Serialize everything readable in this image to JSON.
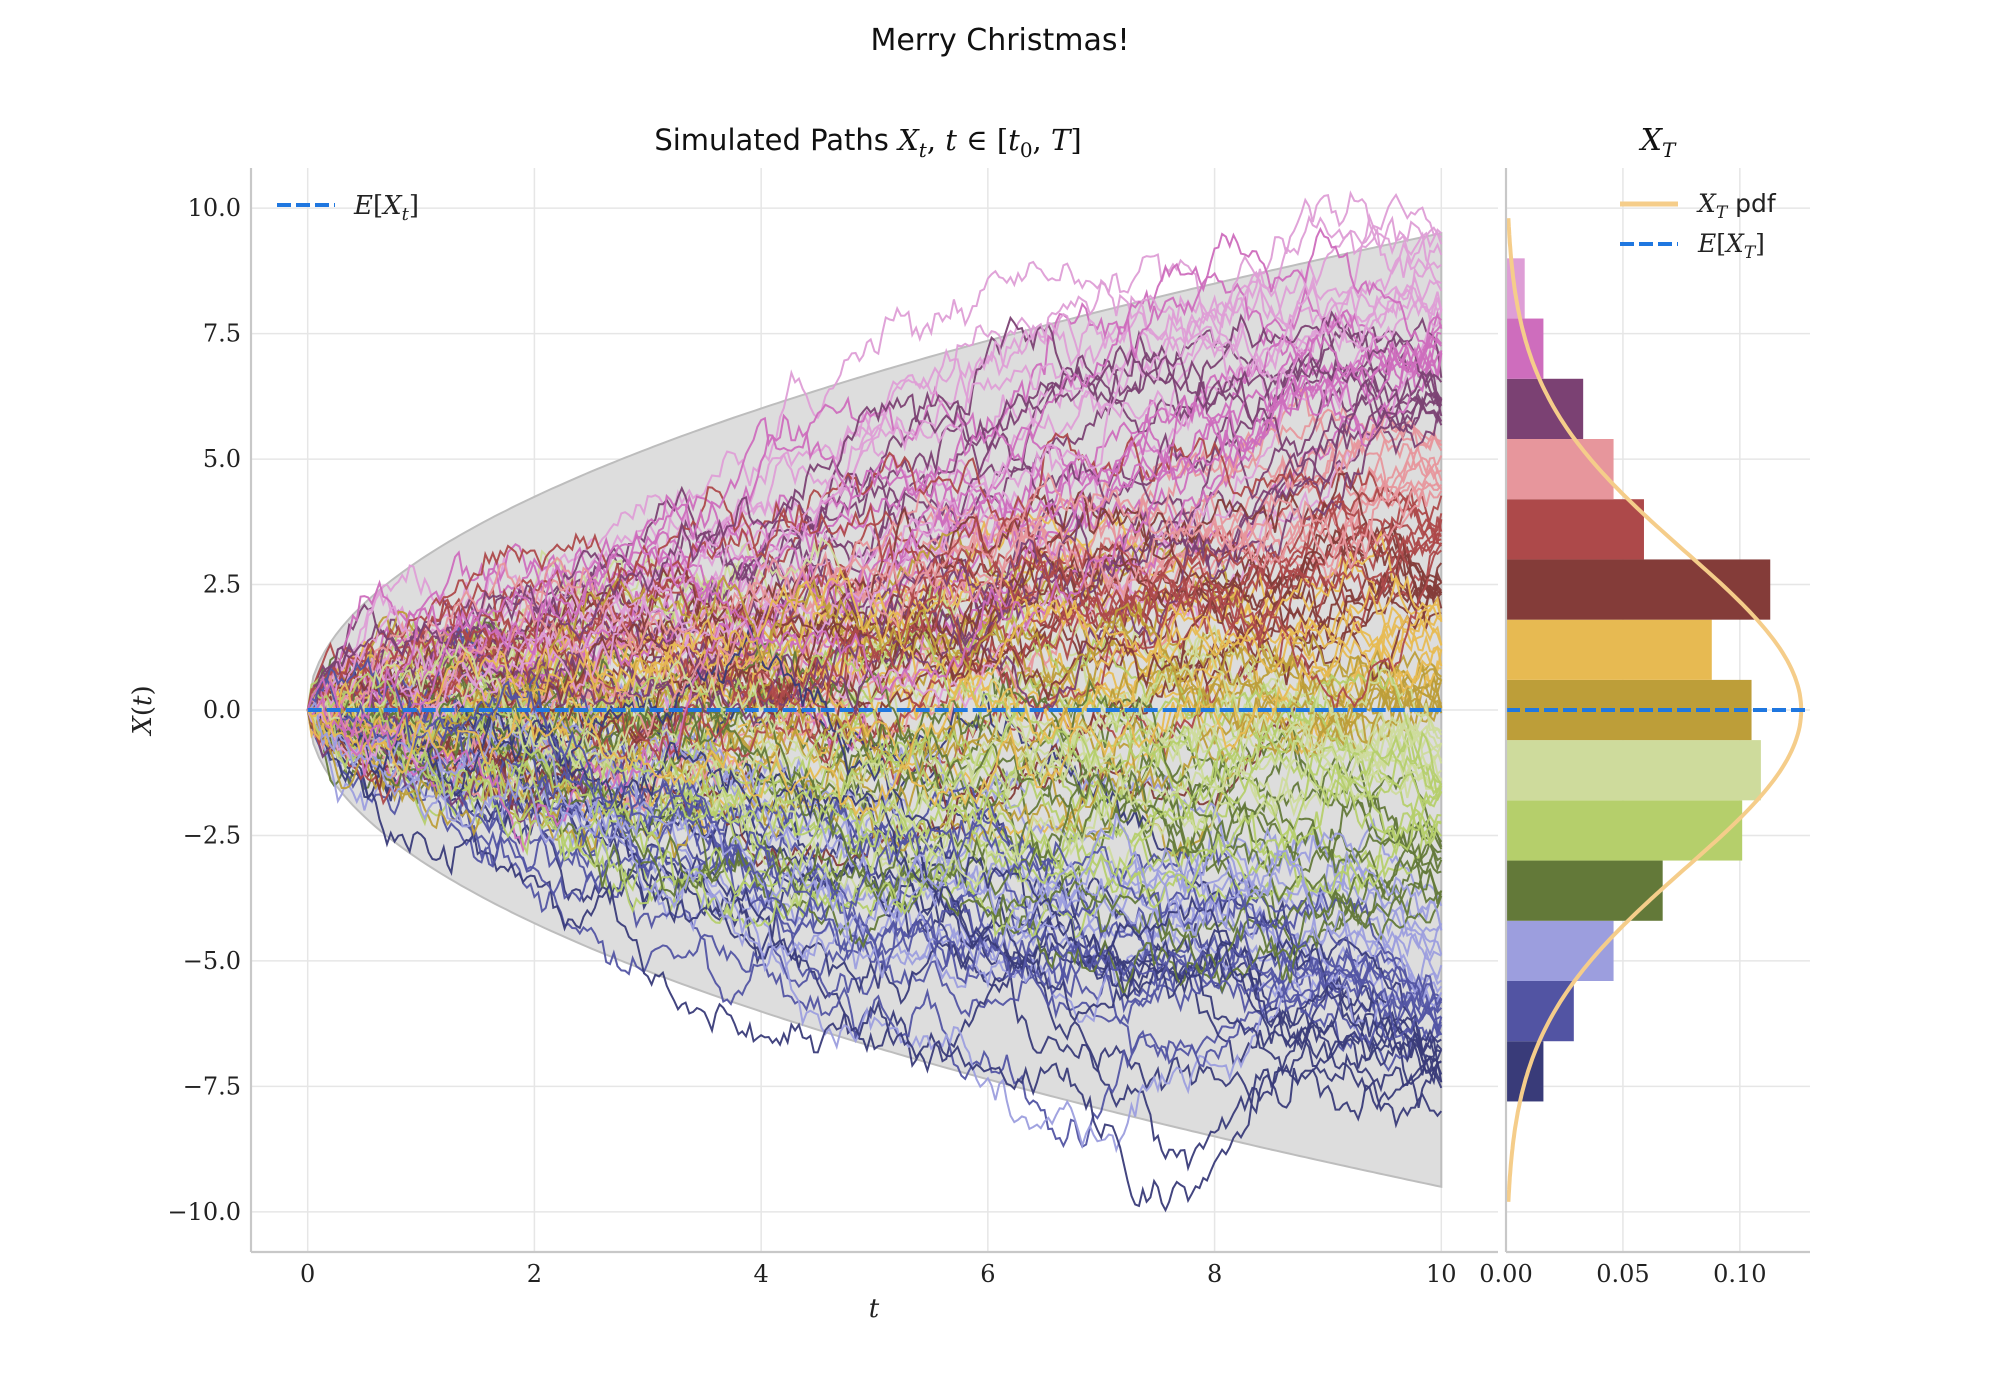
{
  "figure": {
    "suptitle": "Merry Christmas!"
  },
  "chart_data": [
    {
      "type": "line",
      "title": "Simulated Paths X_t, t ∈ [t_0, T]",
      "xlabel": "t",
      "ylabel": "X(t)",
      "xlim": [
        -0.5,
        10.5
      ],
      "ylim": [
        -10.8,
        10.8
      ],
      "xticks": [
        0,
        2,
        4,
        6,
        8,
        10
      ],
      "xtick_labels": [
        "0",
        "2",
        "4",
        "6",
        "8",
        "10"
      ],
      "yticks": [
        -10,
        -7.5,
        -5,
        -2.5,
        0,
        2.5,
        5,
        7.5,
        10
      ],
      "ytick_labels": [
        "−10.0",
        "−7.5",
        "−5.0",
        "−2.5",
        "0.0",
        "2.5",
        "5.0",
        "7.5",
        "10.0"
      ],
      "grid": true,
      "legend": {
        "placement": "top-left",
        "entries": [
          {
            "label": "E[X_t]",
            "style": "dashed",
            "color": "#1f77e0"
          }
        ]
      },
      "band": {
        "t_start": 0,
        "t_end": 10,
        "upper_at_T": 9.5,
        "lower_at_T": -9.5,
        "color": "#dddddd"
      },
      "mean_line": {
        "value": 0,
        "color": "#1f77e0"
      },
      "num_paths_estimate": 150,
      "terminal_value_range": [
        -8,
        9.6
      ],
      "color_groups": [
        {
          "color": "#393b79",
          "terminal_range": [
            -8,
            -6.5
          ]
        },
        {
          "color": "#5254a3",
          "terminal_range": [
            -6.5,
            -5.7
          ]
        },
        {
          "color": "#9c9ede",
          "terminal_range": [
            -5.7,
            -3.8
          ]
        },
        {
          "color": "#637939",
          "terminal_range": [
            -3.8,
            -2.6
          ]
        },
        {
          "color": "#b5cf6b",
          "terminal_range": [
            -2.6,
            -1.4
          ]
        },
        {
          "color": "#cedb9c",
          "terminal_range": [
            -1.4,
            -0.4
          ]
        },
        {
          "color": "#bd9e39",
          "terminal_range": [
            -0.4,
            0.8
          ]
        },
        {
          "color": "#e7ba52",
          "terminal_range": [
            0.8,
            1.9
          ]
        },
        {
          "color": "#843c39",
          "terminal_range": [
            1.9,
            3.1
          ]
        },
        {
          "color": "#ad494a",
          "terminal_range": [
            3.1,
            4.3
          ]
        },
        {
          "color": "#e7969c",
          "terminal_range": [
            4.3,
            5.5
          ]
        },
        {
          "color": "#7b4173",
          "terminal_range": [
            5.5,
            6.7
          ]
        },
        {
          "color": "#ce6dbd",
          "terminal_range": [
            6.7,
            7.9
          ]
        },
        {
          "color": "#de9ed6",
          "terminal_range": [
            7.9,
            9.6
          ]
        }
      ]
    },
    {
      "type": "bar",
      "orientation": "horizontal",
      "title": "X_T",
      "xlabel": "",
      "ylabel": "",
      "xlim": [
        0,
        0.13
      ],
      "ylim": [
        -10.8,
        10.8
      ],
      "xticks": [
        0,
        0.05,
        0.1
      ],
      "xtick_labels": [
        "0.00",
        "0.05",
        "0.10"
      ],
      "grid": true,
      "legend": {
        "placement": "top-right",
        "entries": [
          {
            "label": "X_T pdf",
            "style": "solid",
            "color": "#f5cd8a"
          },
          {
            "label": "E[X_T]",
            "style": "dashed",
            "color": "#1f77e0"
          }
        ]
      },
      "bins": [
        {
          "y0": -7.8,
          "y1": -6.6,
          "density": 0.016,
          "color": "#393b79"
        },
        {
          "y0": -6.6,
          "y1": -5.4,
          "density": 0.029,
          "color": "#5254a3"
        },
        {
          "y0": -5.4,
          "y1": -4.2,
          "density": 0.046,
          "color": "#9c9ede"
        },
        {
          "y0": -4.2,
          "y1": -3.0,
          "density": 0.067,
          "color": "#637939"
        },
        {
          "y0": -3.0,
          "y1": -1.8,
          "density": 0.101,
          "color": "#b5cf6b"
        },
        {
          "y0": -1.8,
          "y1": -0.6,
          "density": 0.109,
          "color": "#cedb9c"
        },
        {
          "y0": -0.6,
          "y1": 0.6,
          "density": 0.105,
          "color": "#bd9e39"
        },
        {
          "y0": 0.6,
          "y1": 1.8,
          "density": 0.088,
          "color": "#e7ba52"
        },
        {
          "y0": 1.8,
          "y1": 3.0,
          "density": 0.113,
          "color": "#843c39"
        },
        {
          "y0": 3.0,
          "y1": 4.2,
          "density": 0.059,
          "color": "#ad494a"
        },
        {
          "y0": 4.2,
          "y1": 5.4,
          "density": 0.046,
          "color": "#e7969c"
        },
        {
          "y0": 5.4,
          "y1": 6.6,
          "density": 0.033,
          "color": "#7b4173"
        },
        {
          "y0": 6.6,
          "y1": 7.8,
          "density": 0.016,
          "color": "#ce6dbd"
        },
        {
          "y0": 7.8,
          "y1": 9.0,
          "density": 0.008,
          "color": "#de9ed6"
        }
      ],
      "pdf": {
        "distribution": "normal",
        "mean": 0,
        "std": 3.16,
        "color": "#f5cd8a"
      },
      "mean_line": {
        "value": 0,
        "color": "#1f77e0"
      }
    }
  ]
}
